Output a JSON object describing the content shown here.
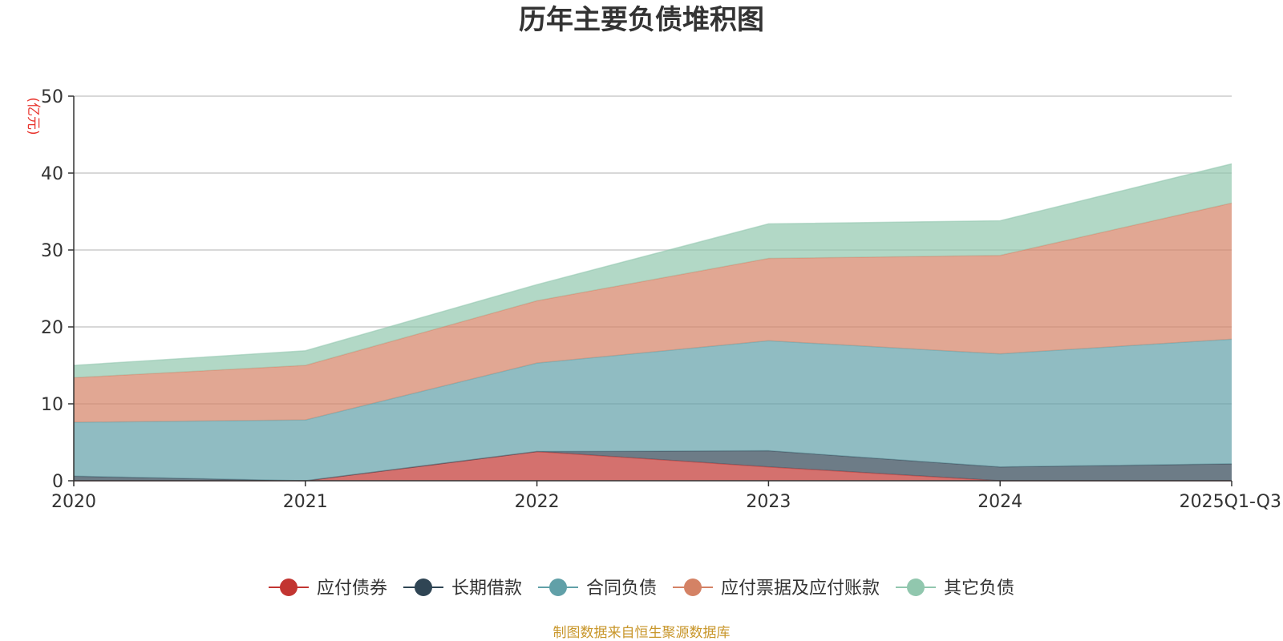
{
  "colors": {
    "应付债券": "#c23531",
    "长期借款": "#2f4554",
    "合同负债": "#61a0a8",
    "应付票据及应付账款": "#d48265",
    "其它负债": "#91c7ae",
    "grid": "#cccccc",
    "axis": "#333333",
    "unit": "#e8352e",
    "source": "#c8962a"
  },
  "chart_data": {
    "type": "area",
    "stacked": true,
    "title": "历年主要负债堆积图",
    "ylabel": "(亿元)",
    "xlabel": "",
    "ylim": [
      0,
      50
    ],
    "yticks": [
      0,
      10,
      20,
      30,
      40,
      50
    ],
    "categories": [
      "2020",
      "2021",
      "2022",
      "2023",
      "2024",
      "2025Q1-Q3"
    ],
    "series": [
      {
        "name": "应付债券",
        "values": [
          0.0,
          0.0,
          3.8,
          1.8,
          0.0,
          0.0
        ]
      },
      {
        "name": "长期借款",
        "values": [
          0.6,
          0.0,
          0.0,
          2.1,
          1.8,
          2.2
        ]
      },
      {
        "name": "合同负债",
        "values": [
          7.0,
          7.9,
          11.5,
          14.3,
          14.7,
          16.2
        ]
      },
      {
        "name": "应付票据及应付账款",
        "values": [
          5.8,
          7.1,
          8.1,
          10.7,
          12.8,
          17.7
        ]
      },
      {
        "name": "其它负债",
        "values": [
          1.6,
          1.9,
          2.1,
          4.5,
          4.5,
          5.1
        ]
      }
    ],
    "legend_position": "bottom-center",
    "grid": true
  },
  "source_note": "制图数据来自恒生聚源数据库"
}
